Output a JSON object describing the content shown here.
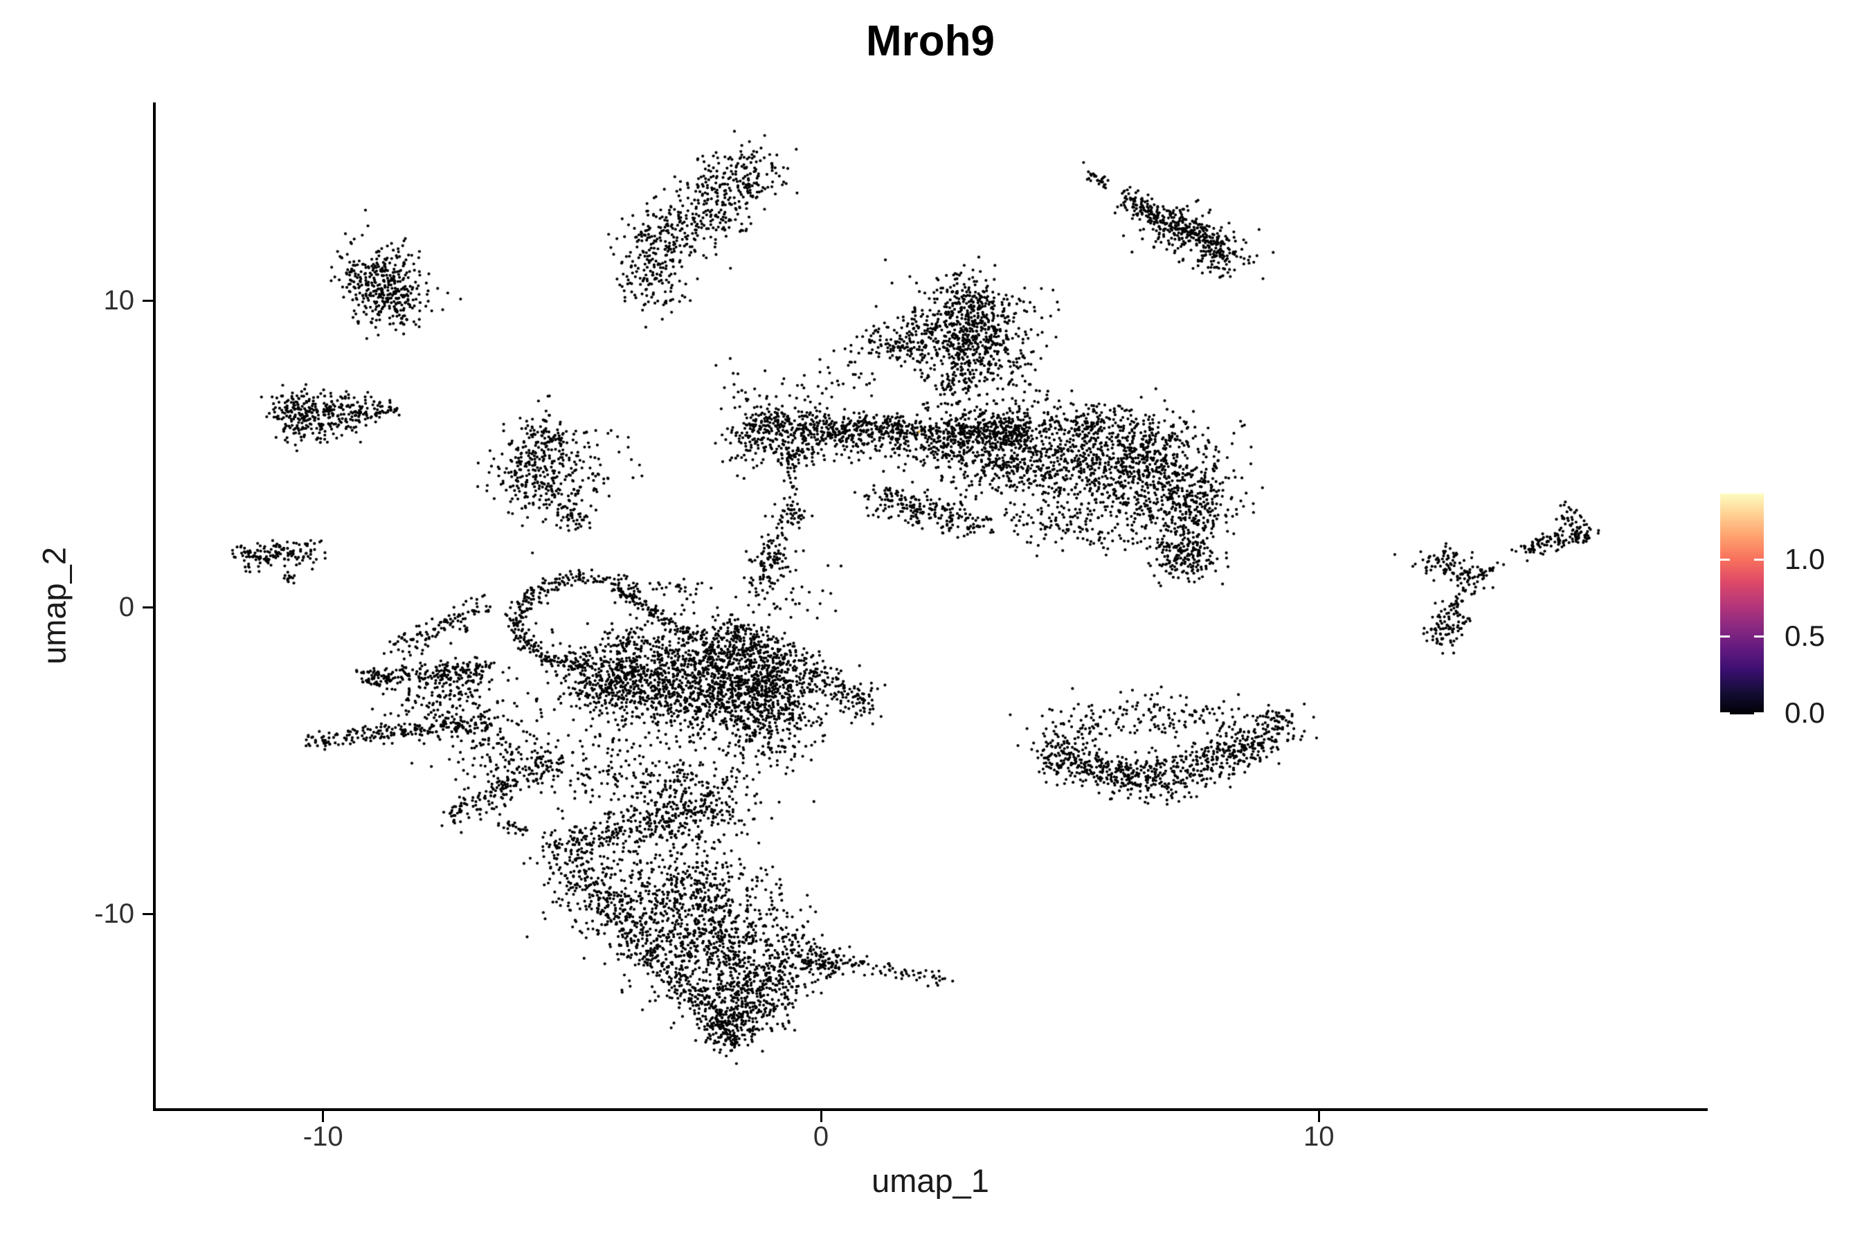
{
  "page_title": "Mroh9",
  "chart_data": {
    "type": "scatter",
    "title": "Mroh9",
    "xlabel": "umap_1",
    "ylabel": "umap_2",
    "x_ticks": {
      "labels": [
        "-10",
        "0",
        "10"
      ],
      "values": [
        -10,
        0,
        10
      ]
    },
    "y_ticks": {
      "labels": [
        "10",
        "0",
        "-10"
      ],
      "values": [
        10,
        0,
        -10
      ]
    },
    "xlim": [
      -13.4,
      17.8
    ],
    "ylim": [
      -16.4,
      16.4
    ],
    "grid": false,
    "background": "#ffffff",
    "point_color": "#000000",
    "point_radius_px": 2.1,
    "legend_position": "right",
    "colorbar": {
      "tick_labels": [
        "1.0",
        "0.5",
        "0.0"
      ],
      "tick_values": [
        1.0,
        0.5,
        0.0
      ],
      "gradient_bottom_to_top": [
        "#000004",
        "#140e36",
        "#3b0f70",
        "#641a80",
        "#8c2981",
        "#b73779",
        "#de4968",
        "#f7705c",
        "#fe9f6d",
        "#fece91",
        "#fcfdbf"
      ]
    },
    "clusters": [
      {
        "t": "l",
        "x1": -3.8,
        "y1": 11.9,
        "x2": -1.05,
        "y2": 14.5,
        "sx": 0.28,
        "sy": 0.5,
        "n": 260
      },
      {
        "t": "l",
        "x1": -3.7,
        "y1": 11.05,
        "x2": -1.6,
        "y2": 13.0,
        "sx": 0.3,
        "sy": 0.45,
        "n": 170
      },
      {
        "t": "g",
        "x": -3.35,
        "y": 10.3,
        "sx": 0.35,
        "sy": 0.5,
        "n": 80
      },
      {
        "t": "g",
        "x": -1.55,
        "y": 13.95,
        "sx": 0.45,
        "sy": 0.45,
        "n": 70
      },
      {
        "t": "l",
        "x1": 5.3,
        "y1": 14.2,
        "x2": 5.78,
        "y2": 13.75,
        "sx": 0.07,
        "sy": 0.1,
        "n": 26
      },
      {
        "t": "l",
        "x1": 6.05,
        "y1": 13.35,
        "x2": 8.1,
        "y2": 11.65,
        "sx": 0.12,
        "sy": 0.22,
        "n": 270
      },
      {
        "t": "g",
        "x": 7.3,
        "y": 12.3,
        "sx": 0.55,
        "sy": 0.45,
        "n": 110
      },
      {
        "t": "g",
        "x": 8.05,
        "y": 11.4,
        "sx": 0.3,
        "sy": 0.35,
        "n": 90
      },
      {
        "t": "g",
        "x": -8.9,
        "y": 10.6,
        "sx": 0.42,
        "sy": 0.62,
        "n": 320
      },
      {
        "t": "g",
        "x": -8.45,
        "y": 9.9,
        "sx": 0.3,
        "sy": 0.35,
        "n": 70
      },
      {
        "t": "l",
        "x1": -10.85,
        "y1": 6.4,
        "x2": -9.05,
        "y2": 6.35,
        "sx": 0.18,
        "sy": 0.32,
        "n": 280
      },
      {
        "t": "l",
        "x1": -9.0,
        "y1": 6.4,
        "x2": -8.5,
        "y2": 6.55,
        "sx": 0.1,
        "sy": 0.12,
        "n": 35
      },
      {
        "t": "g",
        "x": -10.35,
        "y": 5.75,
        "sx": 0.35,
        "sy": 0.3,
        "n": 55
      },
      {
        "t": "l",
        "x1": -11.7,
        "y1": 1.6,
        "x2": -10.1,
        "y2": 1.85,
        "sx": 0.12,
        "sy": 0.22,
        "n": 140
      },
      {
        "t": "l",
        "x1": -10.77,
        "y1": 1.05,
        "x2": -10.6,
        "y2": 0.8,
        "sx": 0.05,
        "sy": 0.07,
        "n": 12
      },
      {
        "t": "g",
        "x": -5.75,
        "y": 4.6,
        "sx": 0.42,
        "sy": 0.8,
        "n": 270
      },
      {
        "t": "g",
        "x": -4.8,
        "y": 4.3,
        "sx": 0.5,
        "sy": 0.75,
        "n": 90
      },
      {
        "t": "l",
        "x1": -5.3,
        "y1": 3.4,
        "x2": -4.85,
        "y2": 2.8,
        "sx": 0.15,
        "sy": 0.25,
        "n": 45
      },
      {
        "t": "g",
        "x": -5.4,
        "y": 5.5,
        "sx": 0.22,
        "sy": 0.3,
        "n": 40
      },
      {
        "t": "g",
        "x": 2.95,
        "y": 9.1,
        "sx": 0.5,
        "sy": 0.7,
        "n": 450
      },
      {
        "t": "g",
        "x": 2.95,
        "y": 9.0,
        "sx": 0.85,
        "sy": 1.05,
        "n": 150
      },
      {
        "t": "l",
        "x1": 1.05,
        "y1": 8.6,
        "x2": 2.2,
        "y2": 8.6,
        "sx": 0.15,
        "sy": 0.38,
        "n": 120
      },
      {
        "t": "g",
        "x": 3.6,
        "y": 7.9,
        "sx": 0.35,
        "sy": 0.55,
        "n": 70
      },
      {
        "t": "l",
        "x1": 2.78,
        "y1": 8.2,
        "x2": 2.68,
        "y2": 6.4,
        "sx": 0.3,
        "sy": 0.35,
        "n": 110
      },
      {
        "t": "g",
        "x": 2.85,
        "y": 10.35,
        "sx": 0.5,
        "sy": 0.3,
        "n": 30
      },
      {
        "t": "l",
        "x1": -1.5,
        "y1": 5.95,
        "x2": 4.2,
        "y2": 5.62,
        "sx": 0.15,
        "sy": 0.27,
        "n": 720
      },
      {
        "t": "p",
        "x": 1.97,
        "y": 5.72,
        "color": "#dfa33e"
      },
      {
        "t": "l",
        "x1": -1.3,
        "y1": 5.45,
        "x2": 3.0,
        "y2": 5.1,
        "sx": 0.3,
        "sy": 0.38,
        "n": 230
      },
      {
        "t": "g",
        "x": -1.45,
        "y": 5.3,
        "sx": 0.28,
        "sy": 0.45,
        "n": 50
      },
      {
        "t": "l",
        "x1": -0.8,
        "y1": 6.4,
        "x2": 1.1,
        "y2": 8.4,
        "sx": 0.3,
        "sy": 0.38,
        "n": 55
      },
      {
        "t": "g",
        "x": -1.62,
        "y": 7.2,
        "sx": 0.22,
        "sy": 0.55,
        "n": 20
      },
      {
        "t": "g",
        "x": 3.6,
        "y": 5.1,
        "sx": 0.65,
        "sy": 0.75,
        "n": 380
      },
      {
        "t": "g",
        "x": 5.2,
        "y": 4.8,
        "sx": 0.85,
        "sy": 0.85,
        "n": 480
      },
      {
        "t": "g",
        "x": 6.7,
        "y": 4.4,
        "sx": 0.75,
        "sy": 0.85,
        "n": 480
      },
      {
        "t": "g",
        "x": 7.35,
        "y": 3.2,
        "sx": 0.45,
        "sy": 0.8,
        "n": 250
      },
      {
        "t": "l",
        "x1": 3.3,
        "y1": 6.05,
        "x2": 6.9,
        "y2": 5.9,
        "sx": 0.5,
        "sy": 0.3,
        "n": 200
      },
      {
        "t": "l",
        "x1": 1.1,
        "y1": 3.55,
        "x2": 3.2,
        "y2": 2.7,
        "sx": 0.25,
        "sy": 0.3,
        "n": 210
      },
      {
        "t": "g",
        "x": 7.35,
        "y": 1.6,
        "sx": 0.3,
        "sy": 0.35,
        "n": 150
      },
      {
        "t": "l",
        "x1": 3.9,
        "y1": 2.8,
        "x2": 6.9,
        "y2": 2.4,
        "sx": 0.4,
        "sy": 0.35,
        "n": 140
      },
      {
        "t": "g",
        "x": -0.55,
        "y": 5.0,
        "sx": 0.2,
        "sy": 0.28,
        "n": 45
      },
      {
        "t": "l",
        "x1": -0.55,
        "y1": 4.7,
        "x2": -0.6,
        "y2": 3.3,
        "sx": 0.12,
        "sy": 0.3,
        "n": 30
      },
      {
        "t": "g",
        "x": -0.6,
        "y": 3.0,
        "sx": 0.18,
        "sy": 0.25,
        "n": 40
      },
      {
        "t": "l",
        "x1": -0.75,
        "y1": 2.6,
        "x2": -1.05,
        "y2": 1.9,
        "sx": 0.12,
        "sy": 0.25,
        "n": 18
      },
      {
        "t": "g",
        "x": -1.05,
        "y": 1.5,
        "sx": 0.28,
        "sy": 0.38,
        "n": 70
      },
      {
        "t": "l",
        "x1": -1.1,
        "y1": 1.0,
        "x2": -1.35,
        "y2": 0.2,
        "sx": 0.15,
        "sy": 0.3,
        "n": 20
      },
      {
        "t": "g",
        "x": -0.55,
        "y": 0.35,
        "sx": 0.5,
        "sy": 0.55,
        "n": 30
      },
      {
        "t": "l",
        "x1": 4.5,
        "y1": -4.75,
        "x2": 6.2,
        "y2": -5.6,
        "sx": 0.25,
        "sy": 0.33,
        "n": 250
      },
      {
        "t": "l",
        "x1": 6.2,
        "y1": -5.6,
        "x2": 8.2,
        "y2": -4.9,
        "sx": 0.3,
        "sy": 0.38,
        "n": 290
      },
      {
        "t": "l",
        "x1": 8.2,
        "y1": -4.9,
        "x2": 9.3,
        "y2": -3.75,
        "sx": 0.25,
        "sy": 0.33,
        "n": 210
      },
      {
        "t": "l",
        "x1": 5.5,
        "y1": -3.7,
        "x2": 8.4,
        "y2": -3.35,
        "sx": 0.5,
        "sy": 0.4,
        "n": 130
      },
      {
        "t": "g",
        "x": 5.1,
        "y": -4.0,
        "sx": 0.45,
        "sy": 0.4,
        "n": 60
      },
      {
        "t": "l",
        "x1": 14.25,
        "y1": 1.95,
        "x2": 15.5,
        "y2": 2.5,
        "sx": 0.1,
        "sy": 0.17,
        "n": 110
      },
      {
        "t": "g",
        "x": 15.05,
        "y": 3.0,
        "sx": 0.14,
        "sy": 0.22,
        "n": 28
      },
      {
        "t": "l",
        "x1": 13.9,
        "y1": 1.8,
        "x2": 14.35,
        "y2": 1.95,
        "sx": 0.04,
        "sy": 0.07,
        "n": 12
      },
      {
        "t": "g",
        "x": 12.5,
        "y": 1.45,
        "sx": 0.28,
        "sy": 0.26,
        "n": 70
      },
      {
        "t": "g",
        "x": 13.1,
        "y": 0.95,
        "sx": 0.18,
        "sy": 0.22,
        "n": 45
      },
      {
        "t": "l",
        "x1": 13.3,
        "y1": 1.15,
        "x2": 13.72,
        "y2": 1.5,
        "sx": 0.05,
        "sy": 0.08,
        "n": 13
      },
      {
        "t": "l",
        "x1": 12.88,
        "y1": 0.65,
        "x2": 12.75,
        "y2": -0.05,
        "sx": 0.06,
        "sy": 0.1,
        "n": 18
      },
      {
        "t": "g",
        "x": 12.65,
        "y": -0.6,
        "sx": 0.22,
        "sy": 0.38,
        "n": 85
      },
      {
        "t": "g",
        "x": 12.25,
        "y": -0.85,
        "sx": 0.1,
        "sy": 0.18,
        "n": 8
      },
      {
        "t": "a",
        "cx": -4.6,
        "cy": -0.5,
        "rx": 1.5,
        "ry": 1.45,
        "a1": 65,
        "a2": 265,
        "sr": 0.09,
        "n": 270
      },
      {
        "t": "g",
        "x": -3.1,
        "y": 0.55,
        "sx": 0.5,
        "sy": 0.25,
        "n": 40
      },
      {
        "t": "l",
        "x1": -4.15,
        "y1": 0.65,
        "x2": -2.0,
        "y2": -1.55,
        "sx": 0.06,
        "sy": 0.09,
        "n": 130
      },
      {
        "t": "g",
        "x": -3.75,
        "y": -1.15,
        "sx": 0.3,
        "sy": 0.18,
        "n": 30
      },
      {
        "t": "l",
        "x1": -1.95,
        "y1": -0.6,
        "x2": 1.1,
        "y2": -3.3,
        "sx": 0.18,
        "sy": 0.3,
        "n": 270
      },
      {
        "t": "g",
        "x": -1.7,
        "y": -1.2,
        "sx": 0.35,
        "sy": 0.4,
        "n": 80
      },
      {
        "t": "l",
        "x1": -2.7,
        "y1": -1.5,
        "x2": -0.3,
        "y2": -3.1,
        "sx": 0.25,
        "sy": 0.4,
        "n": 200
      },
      {
        "t": "g",
        "x": -3.3,
        "y": -2.2,
        "sx": 0.8,
        "sy": 0.85,
        "n": 600
      },
      {
        "t": "g",
        "x": -2.0,
        "y": -2.9,
        "sx": 0.7,
        "sy": 0.85,
        "n": 500
      },
      {
        "t": "g",
        "x": -4.35,
        "y": -2.5,
        "sx": 0.5,
        "sy": 0.6,
        "n": 260
      },
      {
        "t": "l",
        "x1": -1.35,
        "y1": -1.3,
        "x2": -1.0,
        "y2": -4.6,
        "sx": 0.45,
        "sy": 0.5,
        "n": 420
      },
      {
        "t": "g",
        "x": -2.6,
        "y": -6.3,
        "sx": 0.7,
        "sy": 0.7,
        "n": 280
      },
      {
        "t": "g",
        "x": -4.2,
        "y": -5.4,
        "sx": 0.6,
        "sy": 0.75,
        "n": 120
      },
      {
        "t": "l",
        "x1": -5.4,
        "y1": -7.9,
        "x2": -1.9,
        "y2": -13.9,
        "sx": 0.28,
        "sy": 0.33,
        "n": 420
      },
      {
        "t": "l",
        "x1": -5.35,
        "y1": -7.85,
        "x2": -2.6,
        "y2": -6.7,
        "sx": 0.3,
        "sy": 0.3,
        "n": 240
      },
      {
        "t": "g",
        "x": -3.1,
        "y": -9.4,
        "sx": 1.0,
        "sy": 0.95,
        "n": 550
      },
      {
        "t": "g",
        "x": -2.1,
        "y": -10.8,
        "sx": 0.8,
        "sy": 0.9,
        "n": 430
      },
      {
        "t": "g",
        "x": -1.6,
        "y": -12.4,
        "sx": 0.55,
        "sy": 0.75,
        "n": 280
      },
      {
        "t": "l",
        "x1": -0.3,
        "y1": -10.7,
        "x2": -1.7,
        "y2": -13.6,
        "sx": 0.3,
        "sy": 0.4,
        "n": 200
      },
      {
        "t": "g",
        "x": 0.0,
        "y": -11.6,
        "sx": 0.3,
        "sy": 0.3,
        "n": 110
      },
      {
        "t": "g",
        "x": -1.85,
        "y": -13.8,
        "sx": 0.25,
        "sy": 0.4,
        "n": 130
      },
      {
        "t": "l",
        "x1": 0.35,
        "y1": -11.55,
        "x2": 2.3,
        "y2": -12.1,
        "sx": 0.1,
        "sy": 0.12,
        "n": 50
      },
      {
        "t": "g",
        "x": 2.4,
        "y": -12.1,
        "sx": 0.12,
        "sy": 0.12,
        "n": 10
      },
      {
        "t": "l",
        "x1": -9.05,
        "y1": -2.3,
        "x2": -6.7,
        "y2": -2.0,
        "sx": 0.1,
        "sy": 0.16,
        "n": 160
      },
      {
        "t": "l",
        "x1": -8.3,
        "y1": -2.75,
        "x2": -6.8,
        "y2": -2.5,
        "sx": 0.25,
        "sy": 0.3,
        "n": 60
      },
      {
        "t": "g",
        "x": -9.1,
        "y": -2.3,
        "sx": 0.12,
        "sy": 0.16,
        "n": 25
      },
      {
        "t": "l",
        "x1": -10.3,
        "y1": -4.4,
        "x2": -6.7,
        "y2": -3.75,
        "sx": 0.1,
        "sy": 0.15,
        "n": 210
      },
      {
        "t": "l",
        "x1": -7.5,
        "y1": -6.9,
        "x2": -5.35,
        "y2": -5.0,
        "sx": 0.16,
        "sy": 0.25,
        "n": 170
      },
      {
        "t": "l",
        "x1": -6.45,
        "y1": -7.1,
        "x2": -5.85,
        "y2": -7.3,
        "sx": 0.07,
        "sy": 0.1,
        "n": 22
      },
      {
        "t": "l",
        "x1": -8.65,
        "y1": -1.4,
        "x2": -6.7,
        "y2": 0.05,
        "sx": 0.13,
        "sy": 0.2,
        "n": 110
      },
      {
        "t": "g",
        "x": -7.5,
        "y": -3.1,
        "sx": 0.75,
        "sy": 0.65,
        "n": 140
      },
      {
        "t": "g",
        "x": -6.2,
        "y": -4.6,
        "sx": 0.65,
        "sy": 0.6,
        "n": 120
      }
    ]
  }
}
